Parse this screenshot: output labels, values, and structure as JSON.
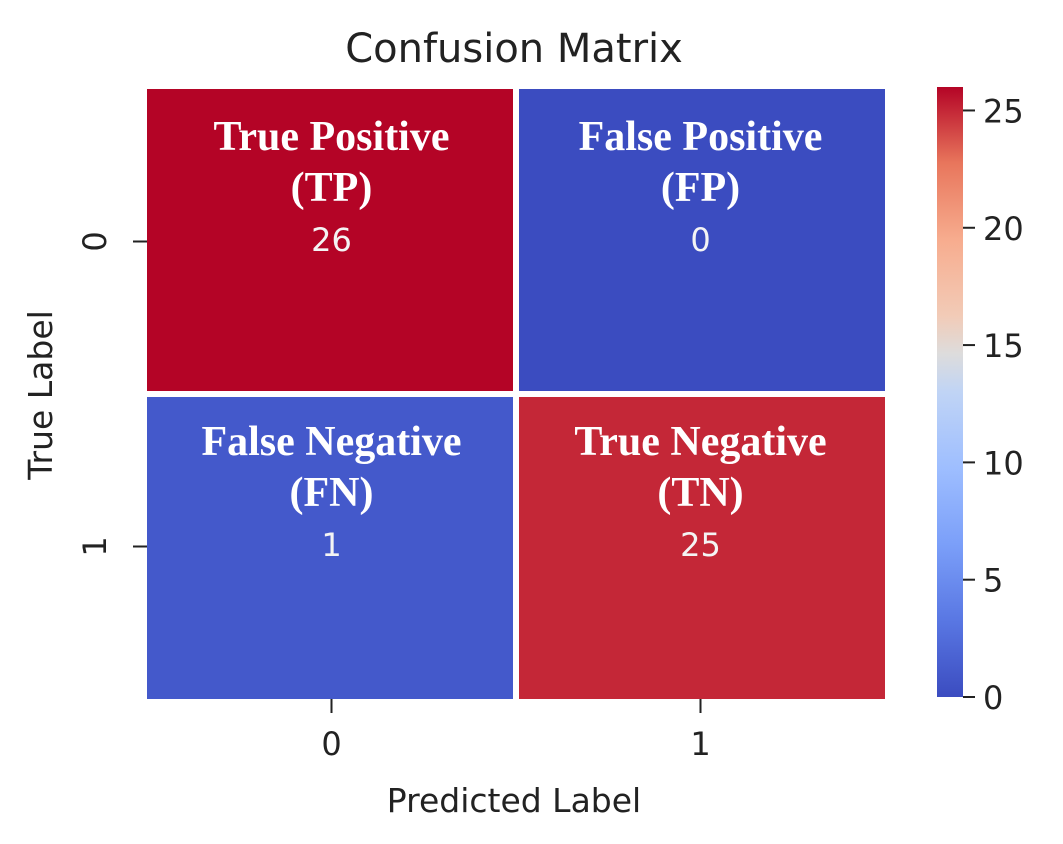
{
  "chart_data": {
    "type": "heatmap",
    "title": "Confusion Matrix",
    "xlabel": "Predicted Label",
    "ylabel": "True Label",
    "x_categories": [
      "0",
      "1"
    ],
    "y_categories": [
      "0",
      "1"
    ],
    "values": [
      [
        26,
        0
      ],
      [
        1,
        25
      ]
    ],
    "cell_labels": [
      [
        [
          "True Positive",
          "(TP)"
        ],
        [
          "False Positive",
          "(FP)"
        ]
      ],
      [
        [
          "False Negative",
          "(FN)"
        ],
        [
          "True Negative",
          "(TN)"
        ]
      ]
    ],
    "colorbar": {
      "cmap": "coolwarm",
      "range": [
        0,
        26
      ],
      "ticks": [
        0,
        5,
        10,
        15,
        20,
        25
      ]
    }
  },
  "colors": {
    "low": "#3b4cc0",
    "high": "#b40426",
    "cell_text": "#ffffff",
    "axis_text": "#222222"
  }
}
